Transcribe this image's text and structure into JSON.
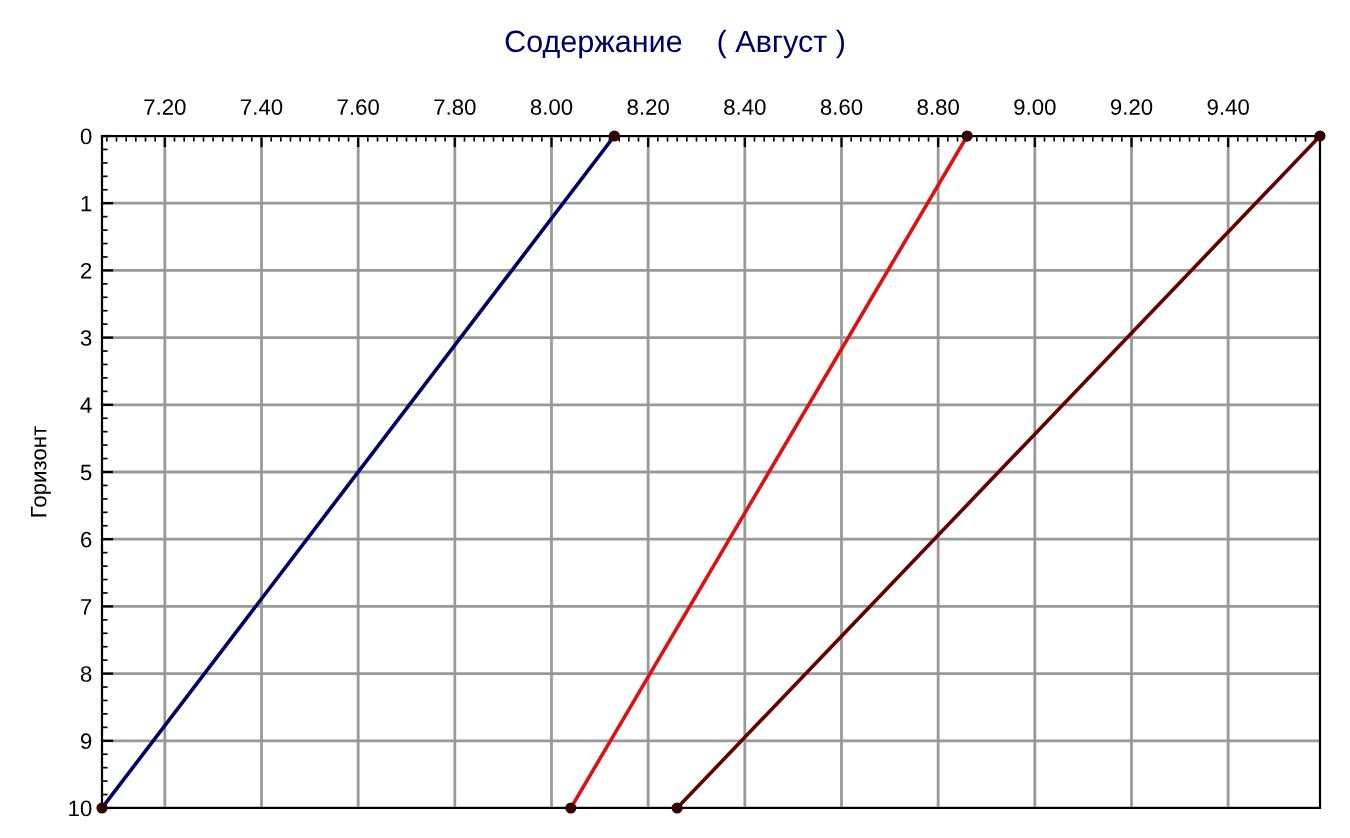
{
  "chart_data": {
    "type": "line",
    "title": "Содержание    ( Август )",
    "ylabel": "Горизонт",
    "series": [
      {
        "color": "#000066",
        "x": [
          8.13,
          7.07
        ],
        "values": [
          0,
          10
        ]
      },
      {
        "color": "#dd1111",
        "x": [
          8.86,
          8.04
        ],
        "values": [
          0,
          10
        ]
      },
      {
        "color": "#660000",
        "x": [
          9.59,
          8.26
        ],
        "values": [
          0,
          10
        ]
      }
    ],
    "xlim": [
      7.07,
      9.59
    ],
    "xticks": [
      {
        "value": 7.2,
        "label": "7.20"
      },
      {
        "value": 7.4,
        "label": "7.40"
      },
      {
        "value": 7.6,
        "label": "7.60"
      },
      {
        "value": 7.8,
        "label": "7.80"
      },
      {
        "value": 8.0,
        "label": "8.00"
      },
      {
        "value": 8.2,
        "label": "8.20"
      },
      {
        "value": 8.4,
        "label": "8.40"
      },
      {
        "value": 8.6,
        "label": "8.60"
      },
      {
        "value": 8.8,
        "label": "8.80"
      },
      {
        "value": 9.0,
        "label": "9.00"
      },
      {
        "value": 9.2,
        "label": "9.20"
      },
      {
        "value": 9.4,
        "label": "9.40"
      }
    ],
    "ylim": [
      10,
      0
    ],
    "yticks": [
      0,
      1,
      2,
      3,
      4,
      5,
      6,
      7,
      8,
      9,
      10
    ],
    "grid": true,
    "marker": "circle",
    "line_style": "solid"
  }
}
